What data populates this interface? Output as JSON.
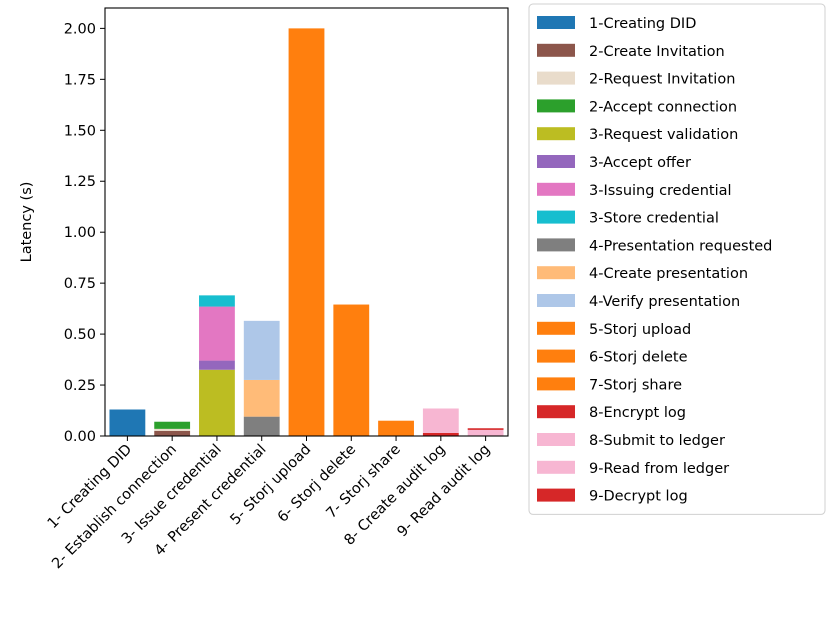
{
  "chart_data": {
    "type": "bar",
    "stacked": true,
    "categories": [
      "1- Creating DID",
      "2- Establish connection",
      "3- Issue credential",
      "4- Present credential",
      "5- Storj upload",
      "6- Storj delete",
      "7- Storj share",
      "8- Create audit log",
      "9- Read audit log"
    ],
    "ylabel": "Latency (s)",
    "xlabel": "",
    "ylim": [
      0,
      2.1
    ],
    "yticks": [
      "0.00",
      "0.25",
      "0.50",
      "0.75",
      "1.00",
      "1.25",
      "1.50",
      "1.75",
      "2.00"
    ],
    "grid": false,
    "legend_position": "outside-right",
    "series": [
      {
        "name": "1-Creating DID",
        "color": "#1f77b4",
        "values": [
          0.13,
          0,
          0,
          0,
          0,
          0,
          0,
          0,
          0
        ]
      },
      {
        "name": "2-Create Invitation",
        "color": "#8c564b",
        "values": [
          0,
          0.025,
          0,
          0,
          0,
          0,
          0,
          0,
          0
        ]
      },
      {
        "name": "2-Request Invitation",
        "color": "#e9dccb",
        "values": [
          0,
          0.01,
          0,
          0,
          0,
          0,
          0,
          0,
          0
        ]
      },
      {
        "name": "2-Accept connection",
        "color": "#2ca02c",
        "values": [
          0,
          0.035,
          0,
          0,
          0,
          0,
          0,
          0,
          0
        ]
      },
      {
        "name": "3-Request validation",
        "color": "#bcbd22",
        "values": [
          0,
          0,
          0.325,
          0,
          0,
          0,
          0,
          0,
          0
        ]
      },
      {
        "name": "3-Accept offer",
        "color": "#9467bd",
        "values": [
          0,
          0,
          0.045,
          0,
          0,
          0,
          0,
          0,
          0
        ]
      },
      {
        "name": "3-Issuing credential",
        "color": "#e377c2",
        "values": [
          0,
          0,
          0.265,
          0,
          0,
          0,
          0,
          0,
          0
        ]
      },
      {
        "name": "3-Store credential",
        "color": "#17becf",
        "values": [
          0,
          0,
          0.055,
          0,
          0,
          0,
          0,
          0,
          0
        ]
      },
      {
        "name": "4-Presentation requested",
        "color": "#7f7f7f",
        "values": [
          0,
          0,
          0,
          0.095,
          0,
          0,
          0,
          0,
          0
        ]
      },
      {
        "name": "4-Create presentation",
        "color": "#ffbb78",
        "values": [
          0,
          0,
          0,
          0.18,
          0,
          0,
          0,
          0,
          0
        ]
      },
      {
        "name": "4-Verify presentation",
        "color": "#aec7e8",
        "values": [
          0,
          0,
          0,
          0.29,
          0,
          0,
          0,
          0,
          0
        ]
      },
      {
        "name": "5-Storj upload",
        "color": "#ff7f0e",
        "values": [
          0,
          0,
          0,
          0,
          2.0,
          0,
          0,
          0,
          0
        ]
      },
      {
        "name": "6-Storj delete",
        "color": "#ff7f0e",
        "values": [
          0,
          0,
          0,
          0,
          0,
          0.645,
          0,
          0,
          0
        ]
      },
      {
        "name": "7-Storj share",
        "color": "#ff7f0e",
        "values": [
          0,
          0,
          0,
          0,
          0,
          0,
          0.075,
          0,
          0
        ]
      },
      {
        "name": "8-Encrypt log",
        "color": "#d62728",
        "values": [
          0,
          0,
          0,
          0,
          0,
          0,
          0,
          0.015,
          0
        ]
      },
      {
        "name": "8-Submit to ledger",
        "color": "#f7b6d2",
        "values": [
          0,
          0,
          0,
          0,
          0,
          0,
          0,
          0.12,
          0
        ]
      },
      {
        "name": "9-Read from ledger",
        "color": "#f7b6d2",
        "values": [
          0,
          0,
          0,
          0,
          0,
          0,
          0,
          0,
          0.03
        ]
      },
      {
        "name": "9-Decrypt log",
        "color": "#d62728",
        "values": [
          0,
          0,
          0,
          0,
          0,
          0,
          0,
          0,
          0.008
        ]
      }
    ]
  }
}
